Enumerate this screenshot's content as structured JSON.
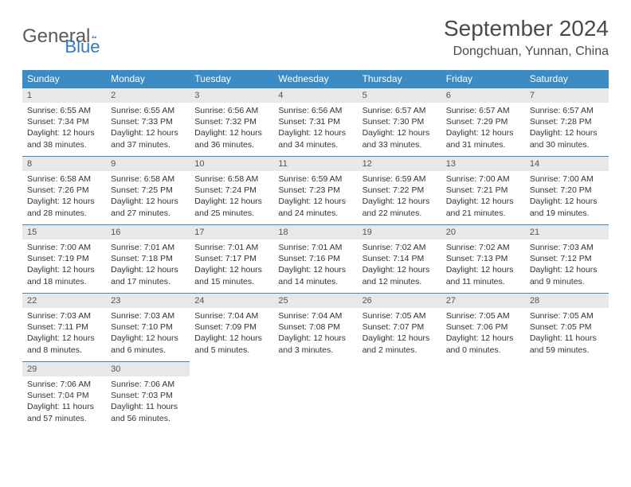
{
  "logo": {
    "text1": "General",
    "text2": "Blue"
  },
  "title": "September 2024",
  "location": "Dongchuan, Yunnan, China",
  "header_bg": "#3b8bc4",
  "header_fg": "#ffffff",
  "daynum_bg": "#e8e8e8",
  "border_color": "#3b8bc4",
  "columns": [
    "Sunday",
    "Monday",
    "Tuesday",
    "Wednesday",
    "Thursday",
    "Friday",
    "Saturday"
  ],
  "weeks": [
    [
      {
        "n": "1",
        "sr": "6:55 AM",
        "ss": "7:34 PM",
        "dl": "12 hours and 38 minutes."
      },
      {
        "n": "2",
        "sr": "6:55 AM",
        "ss": "7:33 PM",
        "dl": "12 hours and 37 minutes."
      },
      {
        "n": "3",
        "sr": "6:56 AM",
        "ss": "7:32 PM",
        "dl": "12 hours and 36 minutes."
      },
      {
        "n": "4",
        "sr": "6:56 AM",
        "ss": "7:31 PM",
        "dl": "12 hours and 34 minutes."
      },
      {
        "n": "5",
        "sr": "6:57 AM",
        "ss": "7:30 PM",
        "dl": "12 hours and 33 minutes."
      },
      {
        "n": "6",
        "sr": "6:57 AM",
        "ss": "7:29 PM",
        "dl": "12 hours and 31 minutes."
      },
      {
        "n": "7",
        "sr": "6:57 AM",
        "ss": "7:28 PM",
        "dl": "12 hours and 30 minutes."
      }
    ],
    [
      {
        "n": "8",
        "sr": "6:58 AM",
        "ss": "7:26 PM",
        "dl": "12 hours and 28 minutes."
      },
      {
        "n": "9",
        "sr": "6:58 AM",
        "ss": "7:25 PM",
        "dl": "12 hours and 27 minutes."
      },
      {
        "n": "10",
        "sr": "6:58 AM",
        "ss": "7:24 PM",
        "dl": "12 hours and 25 minutes."
      },
      {
        "n": "11",
        "sr": "6:59 AM",
        "ss": "7:23 PM",
        "dl": "12 hours and 24 minutes."
      },
      {
        "n": "12",
        "sr": "6:59 AM",
        "ss": "7:22 PM",
        "dl": "12 hours and 22 minutes."
      },
      {
        "n": "13",
        "sr": "7:00 AM",
        "ss": "7:21 PM",
        "dl": "12 hours and 21 minutes."
      },
      {
        "n": "14",
        "sr": "7:00 AM",
        "ss": "7:20 PM",
        "dl": "12 hours and 19 minutes."
      }
    ],
    [
      {
        "n": "15",
        "sr": "7:00 AM",
        "ss": "7:19 PM",
        "dl": "12 hours and 18 minutes."
      },
      {
        "n": "16",
        "sr": "7:01 AM",
        "ss": "7:18 PM",
        "dl": "12 hours and 17 minutes."
      },
      {
        "n": "17",
        "sr": "7:01 AM",
        "ss": "7:17 PM",
        "dl": "12 hours and 15 minutes."
      },
      {
        "n": "18",
        "sr": "7:01 AM",
        "ss": "7:16 PM",
        "dl": "12 hours and 14 minutes."
      },
      {
        "n": "19",
        "sr": "7:02 AM",
        "ss": "7:14 PM",
        "dl": "12 hours and 12 minutes."
      },
      {
        "n": "20",
        "sr": "7:02 AM",
        "ss": "7:13 PM",
        "dl": "12 hours and 11 minutes."
      },
      {
        "n": "21",
        "sr": "7:03 AM",
        "ss": "7:12 PM",
        "dl": "12 hours and 9 minutes."
      }
    ],
    [
      {
        "n": "22",
        "sr": "7:03 AM",
        "ss": "7:11 PM",
        "dl": "12 hours and 8 minutes."
      },
      {
        "n": "23",
        "sr": "7:03 AM",
        "ss": "7:10 PM",
        "dl": "12 hours and 6 minutes."
      },
      {
        "n": "24",
        "sr": "7:04 AM",
        "ss": "7:09 PM",
        "dl": "12 hours and 5 minutes."
      },
      {
        "n": "25",
        "sr": "7:04 AM",
        "ss": "7:08 PM",
        "dl": "12 hours and 3 minutes."
      },
      {
        "n": "26",
        "sr": "7:05 AM",
        "ss": "7:07 PM",
        "dl": "12 hours and 2 minutes."
      },
      {
        "n": "27",
        "sr": "7:05 AM",
        "ss": "7:06 PM",
        "dl": "12 hours and 0 minutes."
      },
      {
        "n": "28",
        "sr": "7:05 AM",
        "ss": "7:05 PM",
        "dl": "11 hours and 59 minutes."
      }
    ],
    [
      {
        "n": "29",
        "sr": "7:06 AM",
        "ss": "7:04 PM",
        "dl": "11 hours and 57 minutes."
      },
      {
        "n": "30",
        "sr": "7:06 AM",
        "ss": "7:03 PM",
        "dl": "11 hours and 56 minutes."
      },
      null,
      null,
      null,
      null,
      null
    ]
  ],
  "labels": {
    "sunrise": "Sunrise:",
    "sunset": "Sunset:",
    "daylight": "Daylight:"
  }
}
